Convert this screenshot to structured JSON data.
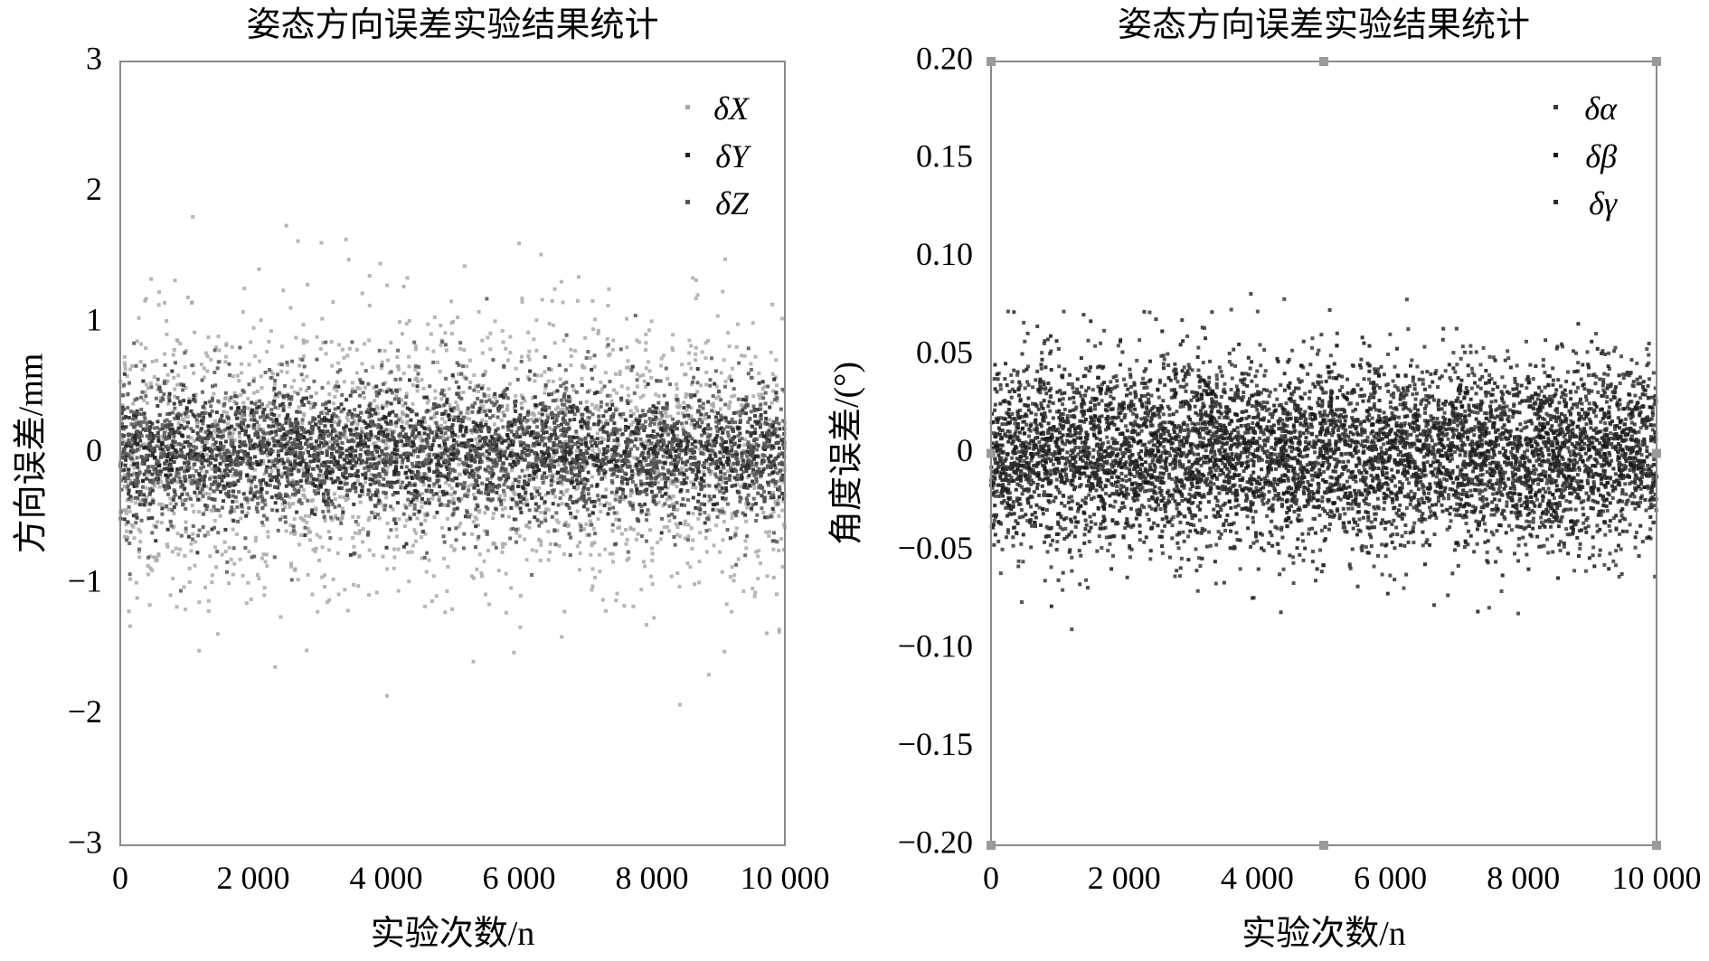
{
  "chart_data": [
    {
      "type": "scatter",
      "title": "姿态方向误差实验结果统计",
      "xlabel": "实验次数/n",
      "ylabel": "方向误差/mm",
      "xlim": [
        0,
        10000
      ],
      "ylim": [
        -3,
        3
      ],
      "x_ticks": [
        0,
        2000,
        4000,
        6000,
        8000,
        10000
      ],
      "x_tick_labels": [
        "0",
        "2 000",
        "4 000",
        "6 000",
        "8 000",
        "10 000"
      ],
      "y_ticks": [
        3,
        2,
        1,
        0,
        -1,
        -2,
        -3
      ],
      "y_tick_labels": [
        "3",
        "2",
        "1",
        "0",
        "−1",
        "−2",
        "−3"
      ],
      "grid": false,
      "legend_position": "top-right",
      "series": [
        {
          "name": "δX",
          "color": "#a9a9a9",
          "mean": 0,
          "std": 0.55,
          "n_points": 10000
        },
        {
          "name": "δY",
          "color": "#202020",
          "mean": 0,
          "std": 0.22,
          "n_points": 10000
        },
        {
          "name": "δZ",
          "color": "#555555",
          "mean": 0,
          "std": 0.32,
          "n_points": 10000
        }
      ]
    },
    {
      "type": "scatter",
      "title": "姿态方向误差实验结果统计",
      "xlabel": "实验次数/n",
      "ylabel": "角度误差/(°)",
      "xlim": [
        0,
        10000
      ],
      "ylim": [
        -0.2,
        0.2
      ],
      "x_ticks": [
        0,
        2000,
        4000,
        6000,
        8000,
        10000
      ],
      "x_tick_labels": [
        "0",
        "2 000",
        "4 000",
        "6 000",
        "8 000",
        "10 000"
      ],
      "y_ticks": [
        0.2,
        0.15,
        0.1,
        0.05,
        0,
        -0.05,
        -0.1,
        -0.15,
        -0.2
      ],
      "y_tick_labels": [
        "0.20",
        "0.15",
        "0.10",
        "0.05",
        "0",
        "−0.05",
        "−0.10",
        "−0.15",
        "−0.20"
      ],
      "grid": false,
      "legend_position": "top-right",
      "series": [
        {
          "name": "δα",
          "color": "#3a3a3a",
          "mean": 0,
          "std": 0.025,
          "n_points": 10000
        },
        {
          "name": "δβ",
          "color": "#151515",
          "mean": 0,
          "std": 0.022,
          "n_points": 10000
        },
        {
          "name": "δγ",
          "color": "#2a2a2a",
          "mean": 0,
          "std": 0.024,
          "n_points": 10000
        }
      ]
    }
  ]
}
